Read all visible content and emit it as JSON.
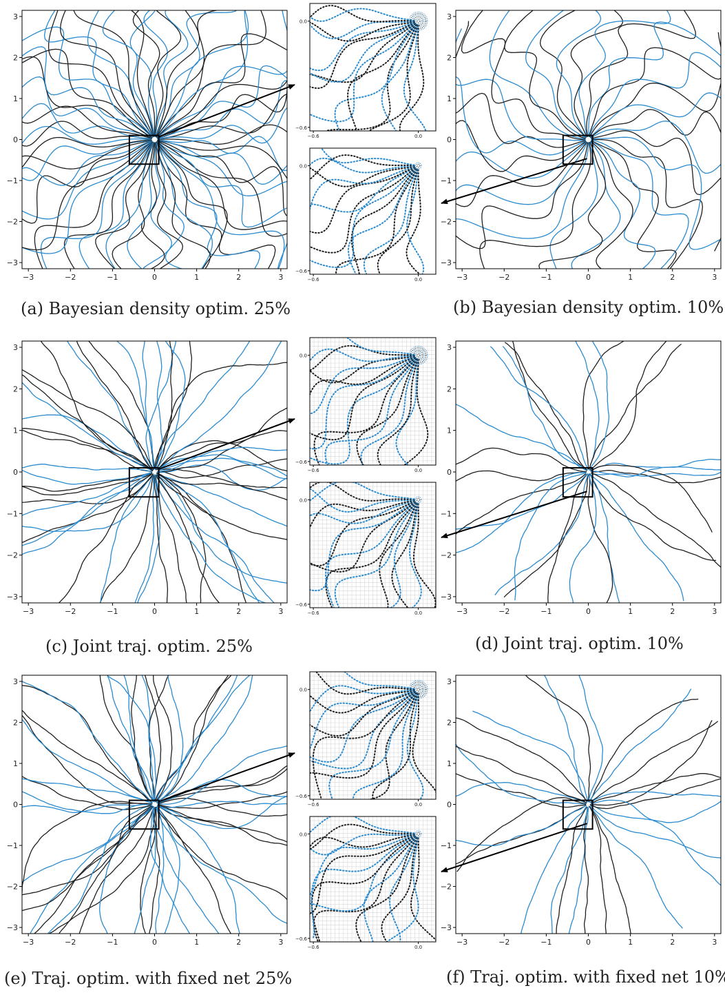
{
  "figure": {
    "colors": {
      "traj_a": "#1f1f1f",
      "traj_b": "#2a8bd0",
      "frame": "#000000"
    },
    "big_axes": {
      "ticks": [
        -3,
        -2,
        -1,
        0,
        1,
        2,
        3
      ],
      "labels": [
        "−3",
        "−2",
        "−1",
        "0",
        "1",
        "2",
        "3"
      ],
      "range": [
        -3.15,
        3.15
      ]
    },
    "zoom_axes": {
      "ticks": [
        -0.6,
        0.0
      ],
      "labels": [
        "−0.6",
        "0.0"
      ],
      "range": [
        -0.62,
        0.1
      ]
    },
    "panels": [
      {
        "id": "a",
        "caption": "(a) Bayesian density optim. 25%",
        "style": "smooth",
        "density": "high",
        "grid": false
      },
      {
        "id": "b",
        "caption": "(b) Bayesian density optim. 10%",
        "style": "smooth",
        "density": "low",
        "grid": false
      },
      {
        "id": "c",
        "caption": "(c) Joint traj. optim. 25%",
        "style": "rough",
        "density": "high",
        "grid": true
      },
      {
        "id": "d",
        "caption": "(d) Joint traj. optim. 10%",
        "style": "rough",
        "density": "low",
        "grid": true
      },
      {
        "id": "e",
        "caption": "(e) Traj. optim. with fixed net 25%",
        "style": "smooth-rough",
        "density": "high",
        "grid": true
      },
      {
        "id": "f",
        "caption": "(f) Traj. optim. with fixed net 10%",
        "style": "rough",
        "density": "low",
        "grid": true
      }
    ]
  }
}
